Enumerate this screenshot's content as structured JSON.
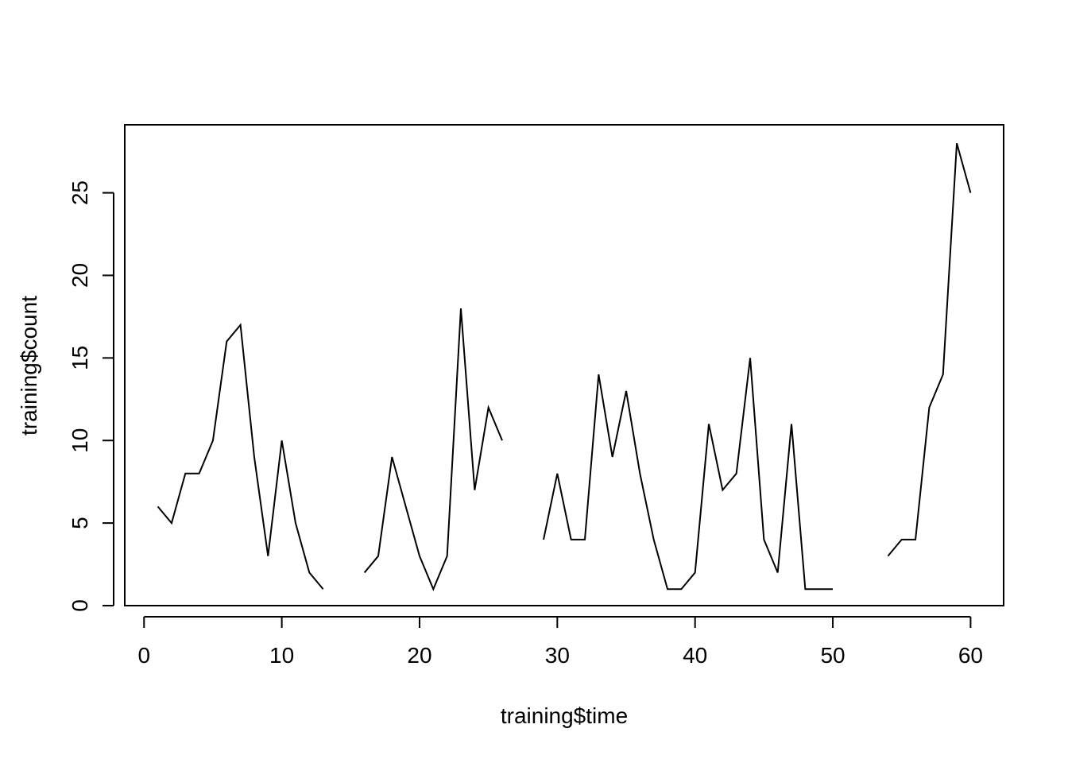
{
  "chart_data": {
    "type": "line",
    "title": "",
    "xlabel": "training$time",
    "ylabel": "training$count",
    "xlim": [
      -1.4,
      62.4
    ],
    "ylim": [
      0,
      29.12
    ],
    "xticks": [
      0,
      10,
      20,
      30,
      40,
      50,
      60
    ],
    "yticks": [
      0,
      5,
      10,
      15,
      20,
      25
    ],
    "grid": false,
    "legend": "none",
    "colors": {
      "line": "#000000",
      "axes": "#000000",
      "background": "#ffffff"
    },
    "segments": [
      {
        "x": [
          1,
          2,
          3,
          4,
          5,
          6,
          7,
          8,
          9,
          10,
          11,
          12,
          13
        ],
        "y": [
          6,
          5,
          8,
          8,
          10,
          16,
          17,
          9,
          3,
          10,
          5,
          2,
          1
        ]
      },
      {
        "x": [
          16,
          17,
          18,
          19,
          20,
          21,
          22,
          23,
          24,
          25,
          26
        ],
        "y": [
          2,
          3,
          9,
          6,
          3,
          1,
          3,
          18,
          7,
          12,
          10
        ]
      },
      {
        "x": [
          29,
          30,
          31,
          32,
          33,
          34,
          35,
          36,
          37,
          38,
          39,
          40,
          41,
          42,
          43,
          44,
          45,
          46,
          47,
          48,
          49,
          50
        ],
        "y": [
          4,
          8,
          4,
          4,
          14,
          9,
          13,
          8,
          4,
          1,
          1,
          2,
          11,
          7,
          8,
          15,
          4,
          2,
          11,
          1,
          1,
          1
        ]
      },
      {
        "x": [
          54,
          55,
          56,
          57,
          58,
          59,
          60
        ],
        "y": [
          3,
          4,
          4,
          12,
          14,
          28,
          25
        ]
      }
    ]
  }
}
